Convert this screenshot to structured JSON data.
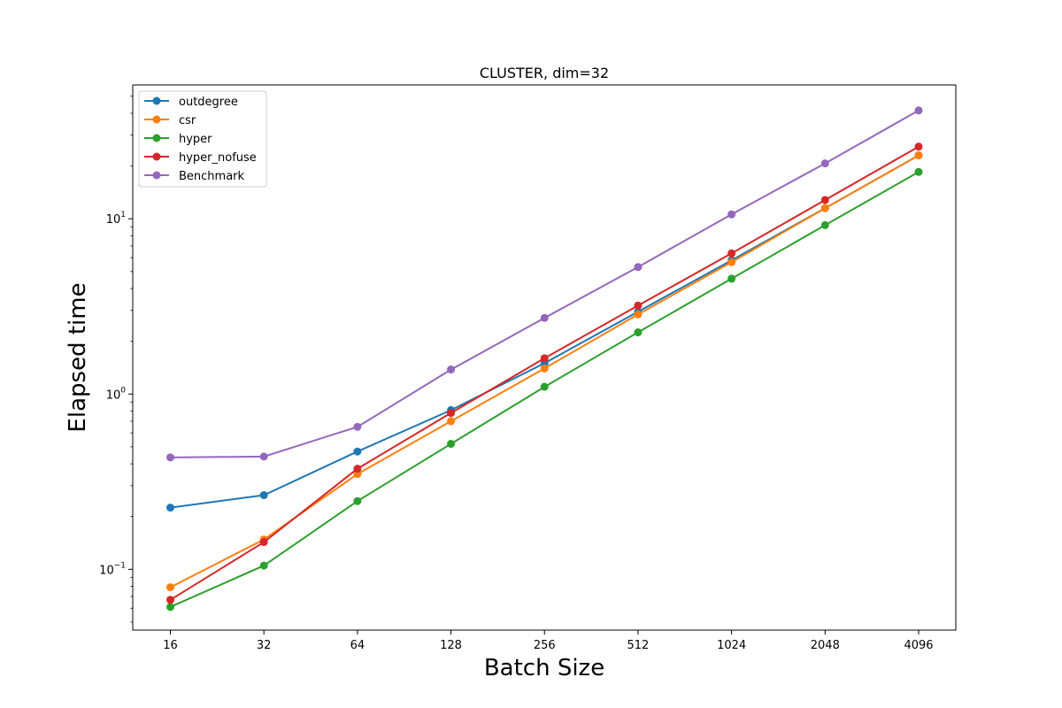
{
  "chart_data": {
    "type": "line",
    "title": "CLUSTER, dim=32",
    "xlabel": "Batch Size",
    "ylabel": "Elapsed time",
    "x_scale": "categorical",
    "y_scale": "log",
    "ylim": [
      0.045,
      58
    ],
    "y_tick_labels": [
      {
        "value": 0.1,
        "base": "10",
        "exp": "−1"
      },
      {
        "value": 1,
        "base": "10",
        "exp": "0"
      },
      {
        "value": 10,
        "base": "10",
        "exp": "1"
      }
    ],
    "legend_position": "upper-left",
    "grid": false,
    "categories": [
      "16",
      "32",
      "64",
      "128",
      "256",
      "512",
      "1024",
      "2048",
      "4096"
    ],
    "series": [
      {
        "name": "outdegree",
        "color": "#1f77b4",
        "values": [
          0.225,
          0.265,
          0.47,
          0.81,
          1.5,
          2.95,
          5.8,
          11.5,
          23.0
        ]
      },
      {
        "name": "csr",
        "color": "#ff7f0e",
        "values": [
          0.079,
          0.148,
          0.35,
          0.7,
          1.4,
          2.85,
          5.65,
          11.5,
          23.0
        ]
      },
      {
        "name": "hyper",
        "color": "#2ca02c",
        "values": [
          0.061,
          0.105,
          0.245,
          0.52,
          1.1,
          2.25,
          4.55,
          9.2,
          18.5
        ]
      },
      {
        "name": "hyper_nofuse",
        "color": "#d62728",
        "values": [
          0.067,
          0.143,
          0.375,
          0.78,
          1.6,
          3.2,
          6.35,
          12.8,
          25.8
        ]
      },
      {
        "name": "Benchmark",
        "color": "#9467bd",
        "values": [
          0.435,
          0.44,
          0.65,
          1.38,
          2.72,
          5.3,
          10.6,
          20.7,
          41.5
        ]
      }
    ]
  }
}
